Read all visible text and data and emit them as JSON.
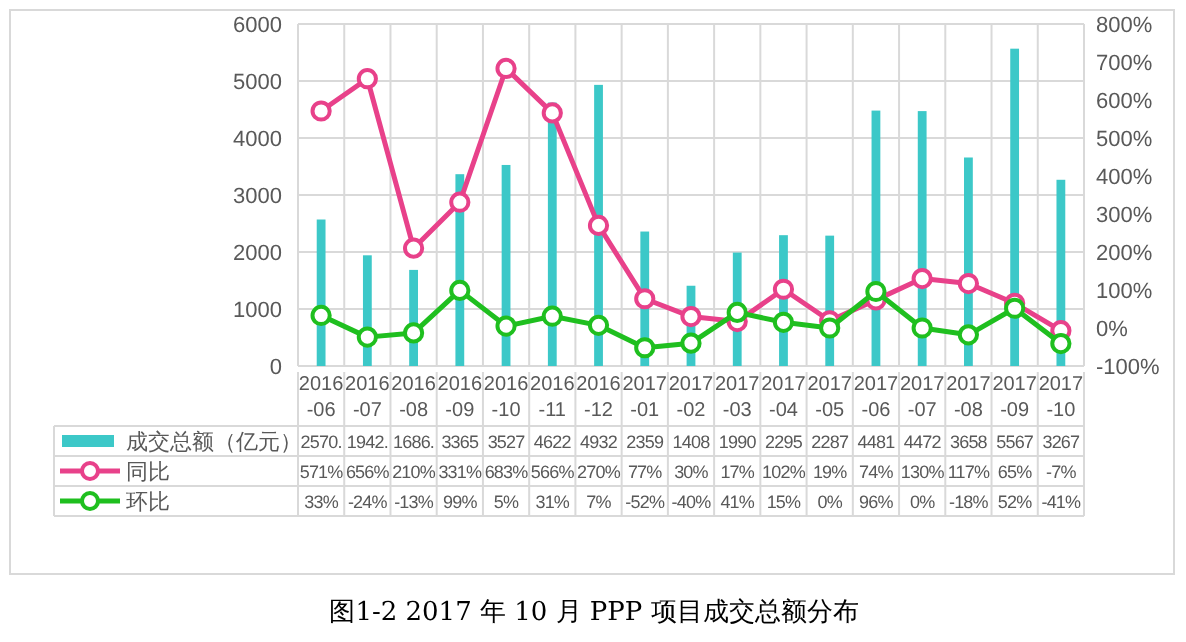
{
  "chart_data": {
    "type": "bar",
    "title": "图1-2 2017 年 10 月 PPP 项目成交总额分布",
    "categories": [
      "2016-06",
      "2016-07",
      "2016-08",
      "2016-09",
      "2016-10",
      "2016-11",
      "2016-12",
      "2017-01",
      "2017-02",
      "2017-03",
      "2017-04",
      "2017-05",
      "2017-06",
      "2017-07",
      "2017-08",
      "2017-09",
      "2017-10"
    ],
    "series": [
      {
        "name": "成交总额（亿元）",
        "type": "bar",
        "color": "#3cc8c8",
        "values": [
          2570,
          1942,
          1686,
          3365,
          3527,
          4622,
          4932,
          2359,
          1408,
          1990,
          2295,
          2287,
          4481,
          4472,
          3658,
          5567,
          3267
        ],
        "value_labels": [
          "2570.",
          "1942.",
          "1686.",
          "3365",
          "3527",
          "4622",
          "4932",
          "2359",
          "1408",
          "1990",
          "2295",
          "2287",
          "4481",
          "4472",
          "3658",
          "5567",
          "3267"
        ]
      },
      {
        "name": "同比",
        "type": "line",
        "axis": "y2",
        "color": "#e8418a",
        "values": [
          571,
          656,
          210,
          331,
          683,
          566,
          270,
          77,
          30,
          17,
          102,
          19,
          74,
          130,
          117,
          65,
          -7
        ],
        "value_labels": [
          "571%",
          "656%",
          "210%",
          "331%",
          "683%",
          "566%",
          "270%",
          "77%",
          "30%",
          "17%",
          "102%",
          "19%",
          "74%",
          "130%",
          "117%",
          "65%",
          "-7%"
        ]
      },
      {
        "name": "环比",
        "type": "line",
        "axis": "y2",
        "color": "#1fbf1f",
        "values": [
          33,
          -24,
          -13,
          99,
          5,
          31,
          7,
          -52,
          -40,
          41,
          15,
          0,
          96,
          0,
          -18,
          52,
          -41
        ],
        "value_labels": [
          "33%",
          "-24%",
          "-13%",
          "99%",
          "5%",
          "31%",
          "7%",
          "-52%",
          "-40%",
          "41%",
          "15%",
          "0%",
          "96%",
          "0%",
          "-18%",
          "52%",
          "-41%"
        ]
      }
    ],
    "ylim": [
      0,
      6000
    ],
    "yticks": [
      0,
      1000,
      2000,
      3000,
      4000,
      5000,
      6000
    ],
    "y2lim": [
      -100,
      800
    ],
    "y2ticks": [
      {
        "value": -100,
        "label": "-100%"
      },
      {
        "value": 0,
        "label": "0%"
      },
      {
        "value": 100,
        "label": "100%"
      },
      {
        "value": 200,
        "label": "200%"
      },
      {
        "value": 300,
        "label": "300%"
      },
      {
        "value": 400,
        "label": "400%"
      },
      {
        "value": 500,
        "label": "500%"
      },
      {
        "value": 600,
        "label": "600%"
      },
      {
        "value": 700,
        "label": "700%"
      },
      {
        "value": 800,
        "label": "800%"
      }
    ],
    "grid": true,
    "legend": "bottom",
    "marker": "circle",
    "line_style": "solid"
  }
}
